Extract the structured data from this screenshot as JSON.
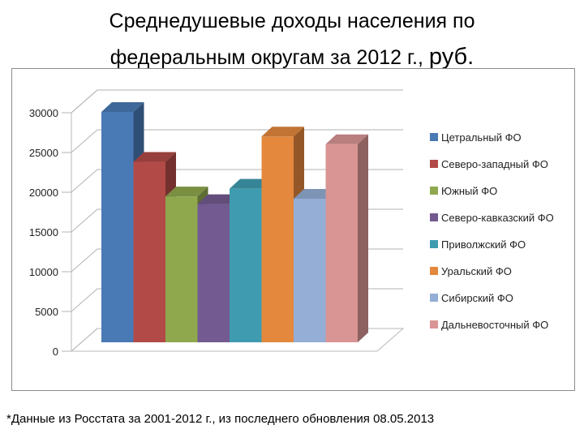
{
  "title": {
    "line1": "Среднедушевые доходы населения по",
    "line2": "федеральным округам за 2012 г., ",
    "unit": "руб."
  },
  "footnote": "*Данные из Росстата за 2001-2012 г., из последнего обновления 08.05.2013",
  "chart_data": {
    "type": "bar",
    "style": "3d-clustered-column",
    "categories": [
      "Цетральный ФО",
      "Северо-западный ФО",
      "Южный ФО",
      "Северо-кавказский ФО",
      "Приволжский ФО",
      "Уральский ФО",
      "Сибирский ФО",
      "Дальневосточный ФО"
    ],
    "values": [
      30000,
      23500,
      19000,
      18000,
      20000,
      26800,
      18700,
      25800
    ],
    "colors": [
      "#4a7ab5",
      "#b24a47",
      "#8fa84e",
      "#735a91",
      "#3f9cb0",
      "#e3883d",
      "#94aed5",
      "#d89594"
    ],
    "ylim": [
      0,
      30000
    ],
    "yticks": [
      "0",
      "5000",
      "10000",
      "15000",
      "20000",
      "25000",
      "30000"
    ],
    "grid": true,
    "legend_position": "right"
  }
}
